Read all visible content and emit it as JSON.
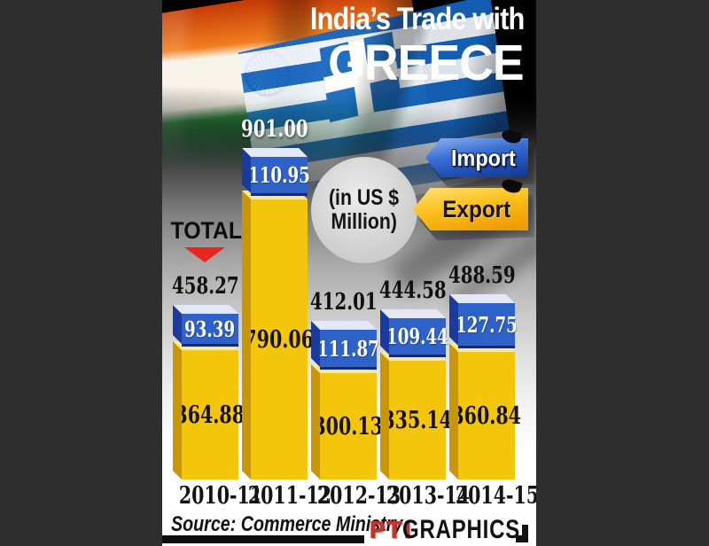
{
  "title": {
    "line1": "India’s Trade with",
    "line2": "GREECE"
  },
  "legend": {
    "import": "Import",
    "export": "Export"
  },
  "unit_note": {
    "line1": "(in US $",
    "line2": "Million)"
  },
  "total_pointer": {
    "label": "TOTAL"
  },
  "colors": {
    "import_blue": "#2e62c8",
    "export_yellow": "#f3c60b",
    "total_arrow_red": "#e8251f",
    "pti_red": "#c4342d"
  },
  "chart_data": {
    "type": "bar",
    "subtype": "stacked-3d",
    "title": "India's Trade with GREECE",
    "unit": "US $ Million",
    "categories": [
      "2010-11",
      "2011-12",
      "2012-13",
      "2013-14",
      "2014-15"
    ],
    "series": [
      {
        "name": "Import",
        "color": "#2e62c8",
        "values": [
          93.39,
          110.95,
          111.87,
          109.44,
          127.75
        ]
      },
      {
        "name": "Export",
        "color": "#f3c60b",
        "values": [
          364.88,
          790.06,
          300.13,
          335.14,
          360.84
        ]
      }
    ],
    "totals": [
      458.27,
      901.0,
      412.01,
      444.58,
      488.59
    ],
    "totals_display": [
      "458.27",
      "901.00",
      "412.01",
      "444.58",
      "488.59"
    ],
    "import_display": [
      "93.39",
      "110.95",
      "111.87",
      "109.44",
      "127.75"
    ],
    "export_display": [
      "364.88",
      "790.06",
      "300.13",
      "335.14",
      "360.84"
    ],
    "total_label_colors": [
      "#101010",
      "#ffffff",
      "#101010",
      "#101010",
      "#101010"
    ],
    "legend_position": "top-right"
  },
  "footer": {
    "source": "Source: Commerce Ministry",
    "credit_pti": "PTI",
    "credit_graphics": "GRAPHICS"
  }
}
